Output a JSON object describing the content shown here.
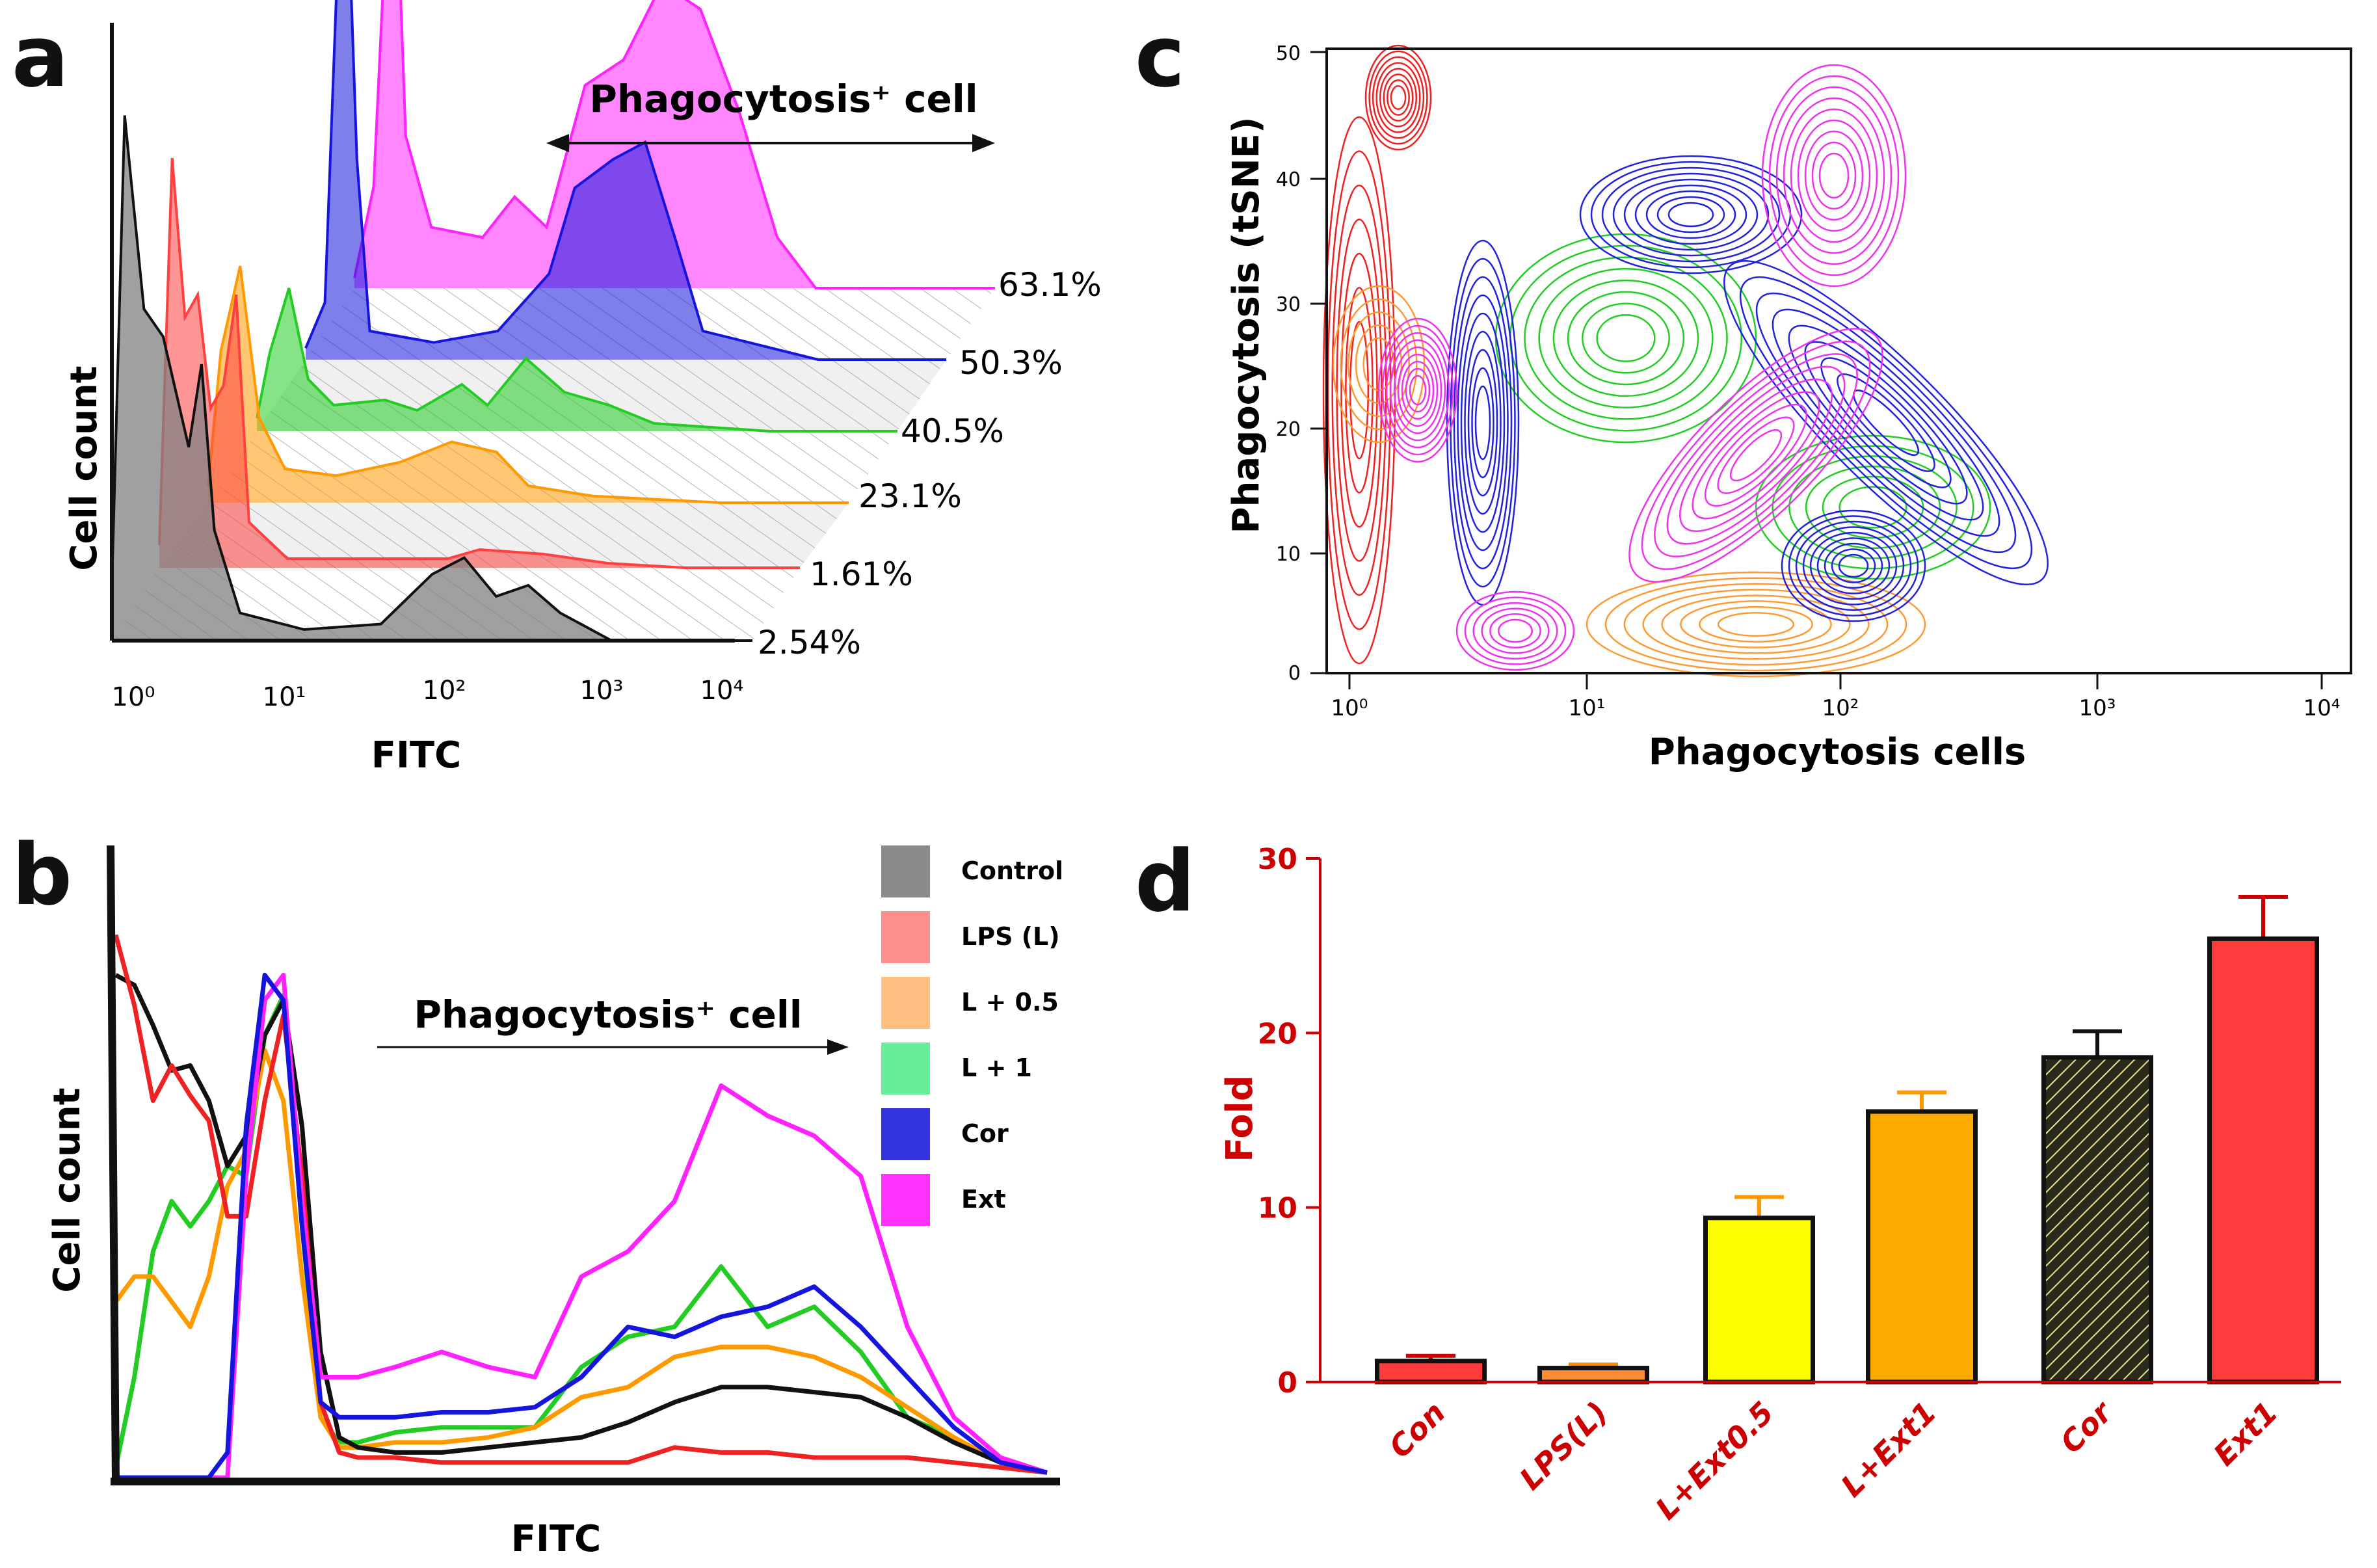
{
  "panels": {
    "a": "a",
    "b": "b",
    "c": "c",
    "d": "d"
  },
  "colors": {
    "control": "#808080",
    "lps": "#ff4040",
    "l05": "#ff9900",
    "l1": "#22cc22",
    "cor": "#1515dd",
    "ext": "#ff22ff",
    "axis_red": "#cc0000",
    "bar_red": "#ff3b3b",
    "bar_yellow": "#ffff00",
    "bar_orange": "#ffaa00",
    "bar_cor": "#2a2a1a"
  },
  "chart_data": [
    {
      "id": "a",
      "type": "area",
      "title": "Phagocytosis⁺ cell",
      "xlabel": "FITC",
      "ylabel": "Cell count",
      "xscale": "log",
      "xlim": [
        1,
        10000
      ],
      "x_tick_labels": [
        "10⁰",
        "10¹",
        "10²",
        "10³",
        "10⁴"
      ],
      "series": [
        {
          "name": "Control",
          "color": "#808080",
          "percent": "2.54%"
        },
        {
          "name": "LPS (L)",
          "color": "#ff4040",
          "percent": "1.61%"
        },
        {
          "name": "L + 0.5",
          "color": "#ff9900",
          "percent": "23.1%"
        },
        {
          "name": "L + 1",
          "color": "#22cc22",
          "percent": "40.5%"
        },
        {
          "name": "Cor",
          "color": "#1515dd",
          "percent": "50.3%"
        },
        {
          "name": "Ext",
          "color": "#ff22ff",
          "percent": "63.1%"
        }
      ]
    },
    {
      "id": "b",
      "type": "line",
      "title": "Phagocytosis⁺ cell",
      "xlabel": "FITC",
      "ylabel": "Cell count",
      "legend": [
        "Control",
        "LPS (L)",
        "L + 0.5",
        "L + 1",
        "Cor",
        "Ext"
      ],
      "legend_position": "top-right",
      "series": [
        {
          "name": "Control",
          "color": "#111111",
          "x": [
            0,
            2,
            4,
            6,
            8,
            10,
            12,
            14,
            16,
            18,
            20,
            22,
            24,
            26,
            30,
            35,
            40,
            45,
            50,
            55,
            60,
            65,
            70,
            75,
            80,
            85,
            90,
            95,
            100
          ],
          "y": [
            100,
            98,
            90,
            81,
            82,
            75,
            62,
            68,
            88,
            95,
            70,
            25,
            8,
            6,
            5,
            5,
            6,
            7,
            8,
            11,
            15,
            18,
            18,
            17,
            16,
            12,
            7,
            3,
            1
          ]
        },
        {
          "name": "LPS (L)",
          "color": "#ee2222",
          "x": [
            0,
            2,
            4,
            6,
            8,
            10,
            12,
            14,
            16,
            18,
            20,
            22,
            24,
            26,
            30,
            35,
            40,
            45,
            50,
            55,
            60,
            65,
            70,
            75,
            80,
            85,
            90,
            95,
            100
          ],
          "y": [
            108,
            94,
            75,
            82,
            76,
            71,
            52,
            52,
            75,
            92,
            60,
            15,
            5,
            4,
            4,
            3,
            3,
            3,
            3,
            3,
            6,
            5,
            5,
            4,
            4,
            4,
            3,
            2,
            1
          ]
        },
        {
          "name": "L + 0.5",
          "color": "#ff9900",
          "x": [
            0,
            2,
            4,
            6,
            8,
            10,
            12,
            14,
            16,
            18,
            20,
            22,
            24,
            26,
            30,
            35,
            40,
            45,
            50,
            55,
            60,
            65,
            70,
            75,
            80,
            85,
            90,
            95,
            100
          ],
          "y": [
            35,
            40,
            40,
            35,
            30,
            40,
            58,
            65,
            85,
            75,
            40,
            12,
            6,
            6,
            7,
            7,
            8,
            10,
            16,
            18,
            24,
            26,
            26,
            24,
            20,
            14,
            8,
            3,
            1
          ]
        },
        {
          "name": "L + 1",
          "color": "#22cc22",
          "x": [
            0,
            2,
            4,
            6,
            8,
            10,
            12,
            14,
            16,
            18,
            20,
            22,
            24,
            26,
            30,
            35,
            40,
            45,
            50,
            55,
            60,
            65,
            70,
            75,
            80,
            85,
            90,
            95,
            100
          ],
          "y": [
            2,
            20,
            45,
            55,
            50,
            55,
            62,
            60,
            88,
            96,
            50,
            12,
            7,
            7,
            9,
            10,
            10,
            10,
            22,
            28,
            30,
            42,
            30,
            34,
            25,
            12,
            8,
            3,
            1
          ]
        },
        {
          "name": "Cor",
          "color": "#1515dd",
          "x": [
            0,
            2,
            4,
            6,
            8,
            10,
            12,
            14,
            16,
            18,
            20,
            22,
            24,
            26,
            30,
            35,
            40,
            45,
            50,
            55,
            60,
            65,
            70,
            75,
            80,
            85,
            90,
            95,
            100
          ],
          "y": [
            0,
            0,
            0,
            0,
            0,
            0,
            5,
            70,
            100,
            95,
            50,
            15,
            12,
            12,
            12,
            13,
            13,
            14,
            20,
            30,
            28,
            32,
            34,
            38,
            30,
            20,
            10,
            3,
            1
          ]
        },
        {
          "name": "Ext",
          "color": "#ff22ff",
          "x": [
            0,
            2,
            4,
            6,
            8,
            10,
            12,
            14,
            16,
            18,
            20,
            22,
            24,
            26,
            30,
            35,
            40,
            45,
            50,
            55,
            60,
            65,
            70,
            75,
            80,
            85,
            90,
            95,
            100
          ],
          "y": [
            0,
            0,
            0,
            0,
            0,
            0,
            0,
            60,
            95,
            100,
            55,
            20,
            20,
            20,
            22,
            25,
            22,
            20,
            40,
            45,
            55,
            78,
            72,
            68,
            60,
            30,
            12,
            4,
            1
          ]
        }
      ]
    },
    {
      "id": "c",
      "type": "contour",
      "xlabel": "Phagocytosis cells",
      "ylabel": "Phagocytosis  (tSNE)",
      "xscale": "log",
      "xlim": [
        1,
        10000
      ],
      "ylim": [
        0,
        50
      ],
      "x_tick_labels": [
        "10⁰",
        "10¹",
        "10²",
        "10³",
        "10⁴"
      ],
      "y_ticks": [
        0,
        10,
        20,
        30,
        40,
        50
      ]
    },
    {
      "id": "d",
      "type": "bar",
      "categories": [
        "Con",
        "LPS(L)",
        "L+Ext0.5",
        "L+Ext1",
        "Cor",
        "Ext1"
      ],
      "values": [
        1.2,
        0.8,
        9.4,
        15.5,
        18.6,
        25.4
      ],
      "errors": [
        0.3,
        0.2,
        1.2,
        1.1,
        1.5,
        2.4
      ],
      "ylabel": "Fold",
      "xlabel": "",
      "ylim": [
        0,
        30
      ],
      "y_ticks": [
        0,
        10,
        20,
        30
      ]
    }
  ]
}
